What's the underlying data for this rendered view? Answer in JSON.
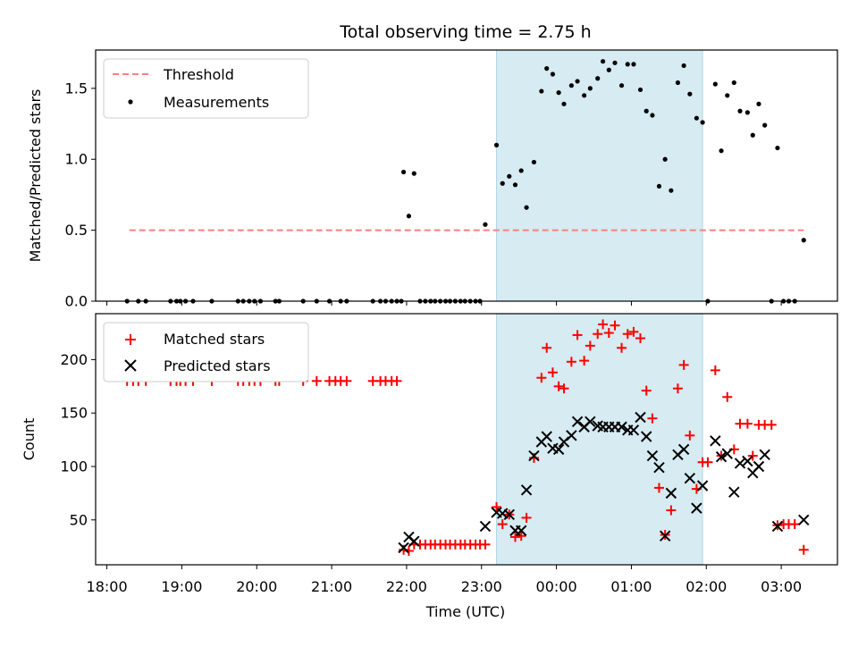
{
  "title": "Total observing time = 2.75 h",
  "chart_data": [
    {
      "type": "scatter",
      "panel": "top",
      "ylabel": "Matched/Predicted stars",
      "ylim": [
        0,
        1.77
      ],
      "yticks": [
        "0.0",
        "0.5",
        "1.0",
        "1.5"
      ],
      "xlim": [
        17.85,
        27.75
      ],
      "threshold": {
        "name": "Threshold",
        "value": 0.5,
        "x": [
          18.3,
          27.3
        ],
        "color": "#ff7f7f"
      },
      "shaded_region": [
        23.2,
        25.95
      ],
      "legend": {
        "placement": "upper-left",
        "entries": [
          "Threshold",
          "Measurements"
        ]
      },
      "series": [
        {
          "name": "Measurements",
          "color": "#000000",
          "points": [
            [
              18.27,
              0
            ],
            [
              18.42,
              0
            ],
            [
              18.52,
              0
            ],
            [
              18.85,
              0
            ],
            [
              18.93,
              0
            ],
            [
              18.98,
              0
            ],
            [
              19.05,
              0
            ],
            [
              19.15,
              0
            ],
            [
              19.4,
              0
            ],
            [
              19.75,
              0
            ],
            [
              19.82,
              0
            ],
            [
              19.9,
              0
            ],
            [
              19.97,
              0
            ],
            [
              20.05,
              0
            ],
            [
              20.25,
              0
            ],
            [
              20.3,
              0
            ],
            [
              20.62,
              0
            ],
            [
              20.8,
              0
            ],
            [
              20.97,
              0
            ],
            [
              21.12,
              0
            ],
            [
              21.2,
              0
            ],
            [
              21.55,
              0
            ],
            [
              21.65,
              0
            ],
            [
              21.72,
              0
            ],
            [
              21.8,
              0
            ],
            [
              21.87,
              0
            ],
            [
              21.93,
              0
            ],
            [
              21.96,
              0.91
            ],
            [
              22.03,
              0.6
            ],
            [
              22.1,
              0.9
            ],
            [
              22.18,
              0
            ],
            [
              22.25,
              0
            ],
            [
              22.32,
              0
            ],
            [
              22.38,
              0
            ],
            [
              22.45,
              0
            ],
            [
              22.52,
              0
            ],
            [
              22.58,
              0
            ],
            [
              22.65,
              0
            ],
            [
              22.72,
              0
            ],
            [
              22.78,
              0
            ],
            [
              22.85,
              0
            ],
            [
              22.92,
              0
            ],
            [
              22.98,
              0
            ],
            [
              23.05,
              0.54
            ],
            [
              23.2,
              1.1
            ],
            [
              23.28,
              0.83
            ],
            [
              23.37,
              0.88
            ],
            [
              23.45,
              0.82
            ],
            [
              23.53,
              0.92
            ],
            [
              23.6,
              0.66
            ],
            [
              23.7,
              0.98
            ],
            [
              23.8,
              1.48
            ],
            [
              23.87,
              1.64
            ],
            [
              23.95,
              1.6
            ],
            [
              24.03,
              1.47
            ],
            [
              24.1,
              1.39
            ],
            [
              24.2,
              1.52
            ],
            [
              24.28,
              1.55
            ],
            [
              24.37,
              1.45
            ],
            [
              24.45,
              1.5
            ],
            [
              24.55,
              1.57
            ],
            [
              24.62,
              1.69
            ],
            [
              24.7,
              1.63
            ],
            [
              24.78,
              1.68
            ],
            [
              24.87,
              1.52
            ],
            [
              24.95,
              1.67
            ],
            [
              25.03,
              1.67
            ],
            [
              25.12,
              1.49
            ],
            [
              25.2,
              1.34
            ],
            [
              25.28,
              1.31
            ],
            [
              25.37,
              0.81
            ],
            [
              25.45,
              1.0
            ],
            [
              25.53,
              0.78
            ],
            [
              25.62,
              1.54
            ],
            [
              25.7,
              1.66
            ],
            [
              25.78,
              1.46
            ],
            [
              25.87,
              1.29
            ],
            [
              25.95,
              1.26
            ],
            [
              26.02,
              0
            ],
            [
              26.12,
              1.53
            ],
            [
              26.2,
              1.06
            ],
            [
              26.28,
              1.45
            ],
            [
              26.37,
              1.54
            ],
            [
              26.45,
              1.34
            ],
            [
              26.55,
              1.33
            ],
            [
              26.62,
              1.17
            ],
            [
              26.7,
              1.39
            ],
            [
              26.78,
              1.24
            ],
            [
              26.87,
              0
            ],
            [
              26.95,
              1.08
            ],
            [
              27.03,
              0
            ],
            [
              27.1,
              0
            ],
            [
              27.18,
              0
            ],
            [
              27.3,
              0.43
            ]
          ]
        }
      ]
    },
    {
      "type": "scatter",
      "panel": "bottom",
      "xlabel": "Time (UTC)",
      "ylabel": "Count",
      "ylim": [
        8,
        243
      ],
      "yticks": [
        "50",
        "100",
        "150",
        "200"
      ],
      "xlim": [
        17.85,
        27.75
      ],
      "xticks": [
        "18:00",
        "19:00",
        "20:00",
        "21:00",
        "22:00",
        "23:00",
        "00:00",
        "01:00",
        "02:00",
        "03:00"
      ],
      "shaded_region": [
        23.2,
        25.95
      ],
      "legend": {
        "placement": "upper-left",
        "entries": [
          "Matched stars",
          "Predicted stars"
        ]
      },
      "series": [
        {
          "name": "Matched stars",
          "marker": "plus",
          "color": "#ff0000",
          "points": [
            [
              18.27,
              180
            ],
            [
              18.35,
              180
            ],
            [
              18.42,
              180
            ],
            [
              18.52,
              180
            ],
            [
              18.85,
              180
            ],
            [
              18.93,
              180
            ],
            [
              18.98,
              180
            ],
            [
              19.05,
              180
            ],
            [
              19.15,
              180
            ],
            [
              19.4,
              180
            ],
            [
              19.75,
              180
            ],
            [
              19.82,
              180
            ],
            [
              19.9,
              180
            ],
            [
              19.97,
              180
            ],
            [
              20.05,
              180
            ],
            [
              20.25,
              180
            ],
            [
              20.3,
              180
            ],
            [
              20.62,
              180
            ],
            [
              20.8,
              180
            ],
            [
              20.97,
              180
            ],
            [
              21.05,
              180
            ],
            [
              21.12,
              180
            ],
            [
              21.2,
              180
            ],
            [
              21.55,
              180
            ],
            [
              21.65,
              180
            ],
            [
              21.72,
              180
            ],
            [
              21.8,
              180
            ],
            [
              21.87,
              180
            ],
            [
              21.96,
              22
            ],
            [
              22.03,
              21
            ],
            [
              22.1,
              27
            ],
            [
              22.18,
              27
            ],
            [
              22.25,
              27
            ],
            [
              22.32,
              27
            ],
            [
              22.38,
              27
            ],
            [
              22.45,
              27
            ],
            [
              22.52,
              27
            ],
            [
              22.58,
              27
            ],
            [
              22.65,
              27
            ],
            [
              22.72,
              27
            ],
            [
              22.78,
              27
            ],
            [
              22.85,
              27
            ],
            [
              22.92,
              27
            ],
            [
              22.98,
              27
            ],
            [
              23.05,
              27
            ],
            [
              23.2,
              62
            ],
            [
              23.28,
              46
            ],
            [
              23.37,
              55
            ],
            [
              23.45,
              34
            ],
            [
              23.53,
              35
            ],
            [
              23.6,
              52
            ],
            [
              23.7,
              108
            ],
            [
              23.8,
              183
            ],
            [
              23.87,
              211
            ],
            [
              23.95,
              188
            ],
            [
              24.03,
              175
            ],
            [
              24.1,
              173
            ],
            [
              24.2,
              198
            ],
            [
              24.28,
              223
            ],
            [
              24.37,
              199
            ],
            [
              24.45,
              213
            ],
            [
              24.55,
              224
            ],
            [
              24.62,
              233
            ],
            [
              24.7,
              225
            ],
            [
              24.78,
              232
            ],
            [
              24.87,
              211
            ],
            [
              24.95,
              224
            ],
            [
              25.03,
              226
            ],
            [
              25.12,
              220
            ],
            [
              25.2,
              171
            ],
            [
              25.28,
              145
            ],
            [
              25.37,
              80
            ],
            [
              25.45,
              36
            ],
            [
              25.53,
              59
            ],
            [
              25.62,
              173
            ],
            [
              25.7,
              195
            ],
            [
              25.78,
              129
            ],
            [
              25.87,
              79
            ],
            [
              25.95,
              104
            ],
            [
              26.02,
              104
            ],
            [
              26.12,
              190
            ],
            [
              26.2,
              110
            ],
            [
              26.28,
              165
            ],
            [
              26.37,
              116
            ],
            [
              26.45,
              140
            ],
            [
              26.55,
              140
            ],
            [
              26.62,
              110
            ],
            [
              26.7,
              139
            ],
            [
              26.78,
              139
            ],
            [
              26.87,
              139
            ],
            [
              26.95,
              45
            ],
            [
              27.03,
              46
            ],
            [
              27.1,
              46
            ],
            [
              27.18,
              46
            ],
            [
              27.3,
              22
            ]
          ]
        },
        {
          "name": "Predicted stars",
          "marker": "x",
          "color": "#000000",
          "points": [
            [
              21.96,
              24
            ],
            [
              22.03,
              34
            ],
            [
              22.1,
              30
            ],
            [
              23.05,
              44
            ],
            [
              23.2,
              57
            ],
            [
              23.28,
              56
            ],
            [
              23.37,
              55
            ],
            [
              23.45,
              40
            ],
            [
              23.53,
              40
            ],
            [
              23.6,
              78
            ],
            [
              23.7,
              110
            ],
            [
              23.8,
              123
            ],
            [
              23.87,
              128
            ],
            [
              23.95,
              117
            ],
            [
              24.03,
              116
            ],
            [
              24.1,
              123
            ],
            [
              24.2,
              129
            ],
            [
              24.28,
              142
            ],
            [
              24.37,
              137
            ],
            [
              24.45,
              142
            ],
            [
              24.55,
              138
            ],
            [
              24.62,
              137
            ],
            [
              24.7,
              137
            ],
            [
              24.78,
              137
            ],
            [
              24.87,
              137
            ],
            [
              24.95,
              134
            ],
            [
              25.03,
              134
            ],
            [
              25.12,
              146
            ],
            [
              25.2,
              128
            ],
            [
              25.28,
              110
            ],
            [
              25.37,
              99
            ],
            [
              25.45,
              35
            ],
            [
              25.53,
              75
            ],
            [
              25.62,
              111
            ],
            [
              25.7,
              116
            ],
            [
              25.78,
              89
            ],
            [
              25.87,
              61
            ],
            [
              25.95,
              82
            ],
            [
              26.12,
              124
            ],
            [
              26.2,
              109
            ],
            [
              26.28,
              112
            ],
            [
              26.37,
              76
            ],
            [
              26.45,
              103
            ],
            [
              26.55,
              105
            ],
            [
              26.62,
              94
            ],
            [
              26.7,
              100
            ],
            [
              26.78,
              111
            ],
            [
              26.95,
              44
            ],
            [
              27.3,
              50
            ]
          ]
        }
      ]
    }
  ]
}
